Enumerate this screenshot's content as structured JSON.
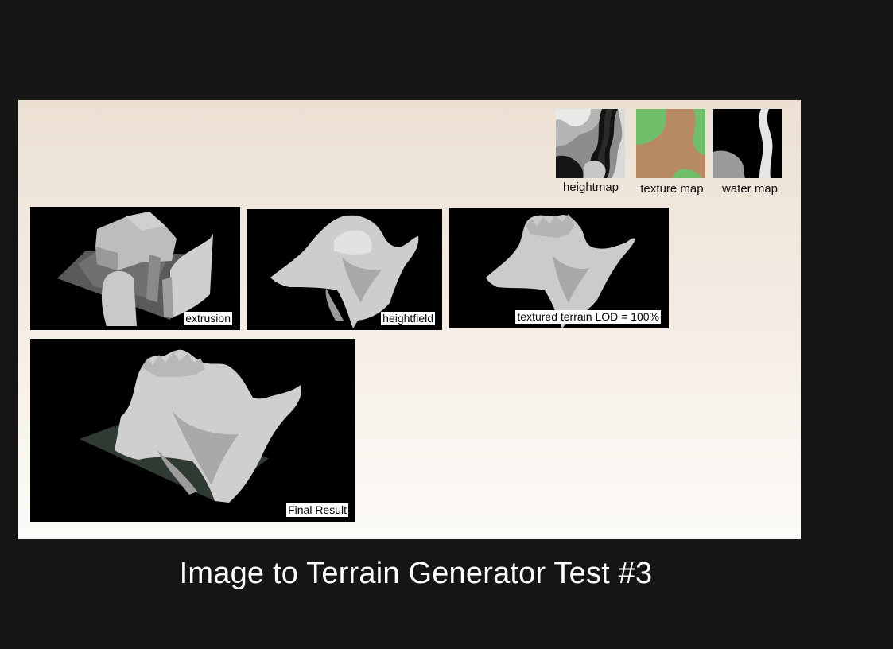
{
  "maps": [
    {
      "label": "heightmap",
      "icon": "heightmap-image"
    },
    {
      "label": "texture map",
      "icon": "texture-map-image"
    },
    {
      "label": "water map",
      "icon": "water-map-image"
    }
  ],
  "panels": {
    "extrusion": "extrusion",
    "heightfield": "heightfield",
    "textured": "textured terrain LOD = 100%",
    "final": "Final Result"
  },
  "caption": "Image to Terrain Generator Test #3",
  "colors": {
    "page_background": "#151515",
    "terrain_light": "#d6d6d6",
    "terrain_green": "#6fbf6a",
    "terrain_brown": "#b88a63",
    "water_surface": "#2f3a33"
  }
}
